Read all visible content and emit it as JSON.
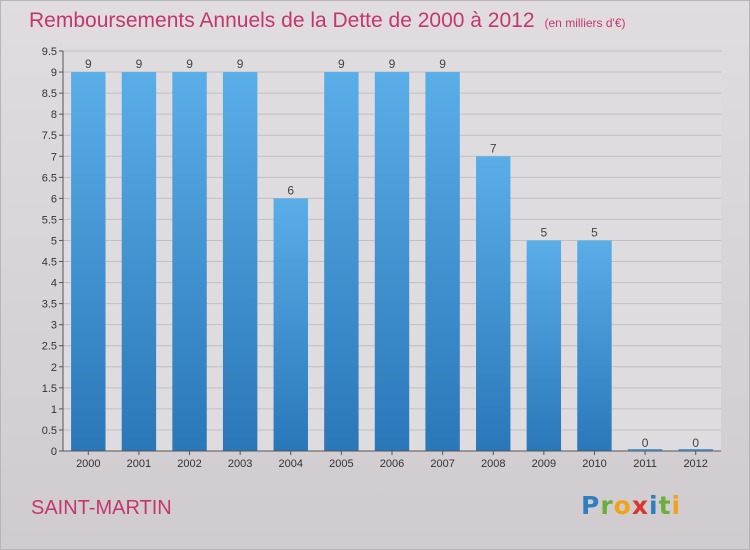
{
  "header": {
    "title": "Remboursements Annuels de la Dette de 2000 à 2012",
    "unit": "(en milliers d'€)"
  },
  "place": "SAINT-MARTIN",
  "logo": {
    "text": "Proxiti",
    "letters": [
      {
        "ch": "P",
        "color": "#2f7fc0"
      },
      {
        "ch": "r",
        "color": "#6cae3a"
      },
      {
        "ch": "o",
        "color": "#f0a21a"
      },
      {
        "ch": "x",
        "color": "#d6372f"
      },
      {
        "ch": "i",
        "color": "#2f7fc0"
      },
      {
        "ch": "t",
        "color": "#6cae3a"
      },
      {
        "ch": "i",
        "color": "#f0a21a"
      }
    ]
  },
  "chart_data": {
    "type": "bar",
    "title": "Remboursements Annuels de la Dette de 2000 à 2012",
    "categories": [
      "2000",
      "2001",
      "2002",
      "2003",
      "2004",
      "2005",
      "2006",
      "2007",
      "2008",
      "2009",
      "2010",
      "2011",
      "2012"
    ],
    "values": [
      9,
      9,
      9,
      9,
      6,
      9,
      9,
      9,
      7,
      5,
      5,
      0,
      0
    ],
    "ylim": [
      0,
      9.5
    ],
    "yticks": [
      {
        "v": 0,
        "label": "0"
      },
      {
        "v": 0.5,
        "label": "0.5"
      },
      {
        "v": 1,
        "label": "1"
      },
      {
        "v": 1.5,
        "label": "1.5"
      },
      {
        "v": 2,
        "label": "2"
      },
      {
        "v": 2.5,
        "label": "2.5"
      },
      {
        "v": 3,
        "label": "3"
      },
      {
        "v": 3.5,
        "label": "3.5"
      },
      {
        "v": 4,
        "label": "4"
      },
      {
        "v": 4.5,
        "label": "4.5"
      },
      {
        "v": 5,
        "label": "5"
      },
      {
        "v": 5.5,
        "label": "5.5"
      },
      {
        "v": 6,
        "label": "6"
      },
      {
        "v": 6.5,
        "label": "6.5"
      },
      {
        "v": 7,
        "label": "7"
      },
      {
        "v": 7.5,
        "label": "7.5"
      },
      {
        "v": 8,
        "label": "8"
      },
      {
        "v": 8.5,
        "label": "8.5"
      },
      {
        "v": 9,
        "label": "9"
      },
      {
        "v": 9.5,
        "label": "9.5"
      }
    ],
    "bar_color": "#4f9fde",
    "grid": true,
    "legend": "none"
  }
}
